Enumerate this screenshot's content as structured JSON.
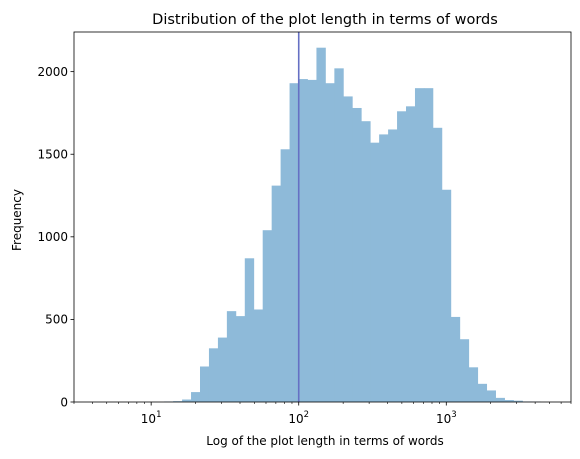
{
  "chart_data": {
    "type": "bar",
    "title": "Distribution of the plot length in terms of words",
    "xlabel": "Log of the plot length in terms of words",
    "ylabel": "Frequency",
    "x_scale": "log",
    "xlim": [
      3,
      7000
    ],
    "ylim": [
      0,
      2240
    ],
    "grid": false,
    "bar_color": "#8ebad9",
    "line_color": "#6670c4",
    "x_ticks": [
      {
        "value": 10,
        "base": "10",
        "exp": "1"
      },
      {
        "value": 100,
        "base": "10",
        "exp": "2"
      },
      {
        "value": 1000,
        "base": "10",
        "exp": "3"
      }
    ],
    "y_ticks": [
      {
        "value": 0,
        "label": "0"
      },
      {
        "value": 500,
        "label": "500"
      },
      {
        "value": 1000,
        "label": "1000"
      },
      {
        "value": 1500,
        "label": "1500"
      },
      {
        "value": 2000,
        "label": "2000"
      }
    ],
    "reference_line_x": 100,
    "bin_edges": [
      4.0,
      4.6,
      5.29,
      6.09,
      7.0,
      8.05,
      9.26,
      10.65,
      12.25,
      14.09,
      16.2,
      18.63,
      21.43,
      24.64,
      28.34,
      32.59,
      37.48,
      43.1,
      49.57,
      57.0,
      65.55,
      75.38,
      86.69,
      99.69,
      114.64,
      131.84,
      151.62,
      174.36,
      200.51,
      230.59,
      265.18,
      304.96,
      350.7,
      403.31,
      463.8,
      533.37,
      613.38,
      705.38,
      811.19,
      932.87,
      1072.8,
      1233.72,
      1418.78,
      1631.6,
      1876.34,
      2157.79,
      2481.46,
      2853.68,
      3281.73,
      3773.99,
      4340.09
    ],
    "counts": [
      0,
      0,
      0,
      0,
      0,
      0,
      0,
      0,
      3,
      5,
      15,
      60,
      215,
      325,
      390,
      550,
      520,
      870,
      560,
      1040,
      1310,
      1530,
      1930,
      1955,
      1950,
      2145,
      1930,
      2020,
      1850,
      1780,
      1700,
      1570,
      1620,
      1650,
      1760,
      1790,
      1900,
      1900,
      1660,
      1285,
      515,
      380,
      210,
      110,
      70,
      25,
      12,
      8,
      3,
      2
    ]
  }
}
